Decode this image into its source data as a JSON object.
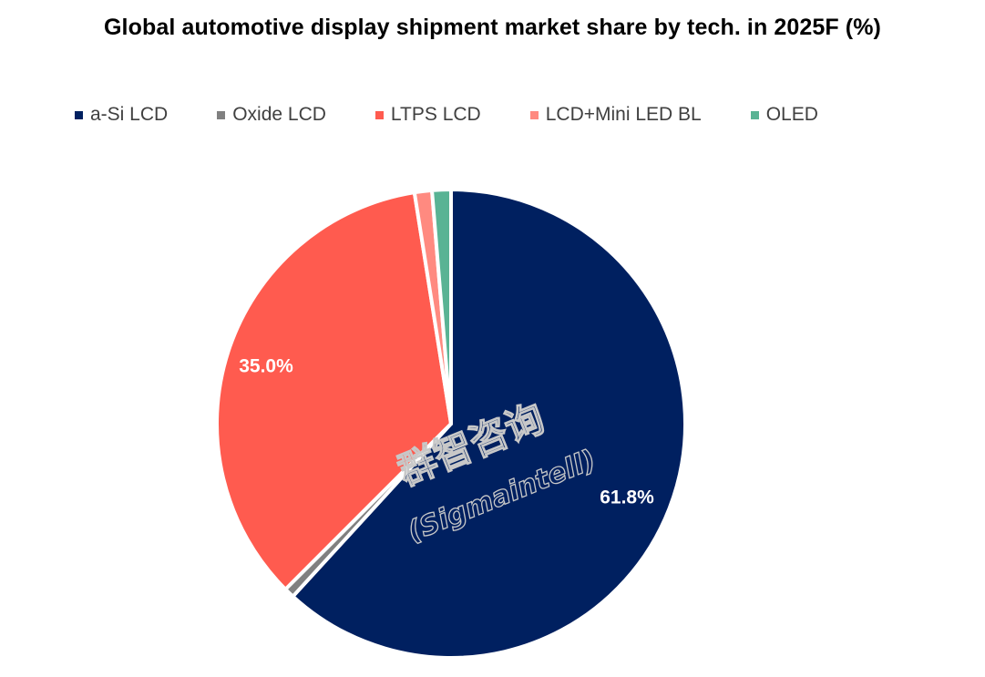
{
  "chart_data": {
    "type": "pie",
    "title": "Global automotive display shipment market share by tech. in 2025F (%)",
    "legend_position": "top",
    "slices": [
      {
        "name": "a-Si LCD",
        "value": 61.8,
        "color": "#002060",
        "label": "61.8%"
      },
      {
        "name": "Oxide LCD",
        "value": 0.7,
        "color": "#808080",
        "label": ""
      },
      {
        "name": "LTPS LCD",
        "value": 35.0,
        "color": "#FF5B4F",
        "label": "35.0%"
      },
      {
        "name": "LCD+Mini LED BL",
        "value": 1.2,
        "color": "#FF8A80",
        "label": ""
      },
      {
        "name": "OLED",
        "value": 1.3,
        "color": "#59B394",
        "label": ""
      }
    ]
  },
  "watermark": {
    "line1": "群智咨询",
    "line2": "(Sigmaintell)"
  }
}
